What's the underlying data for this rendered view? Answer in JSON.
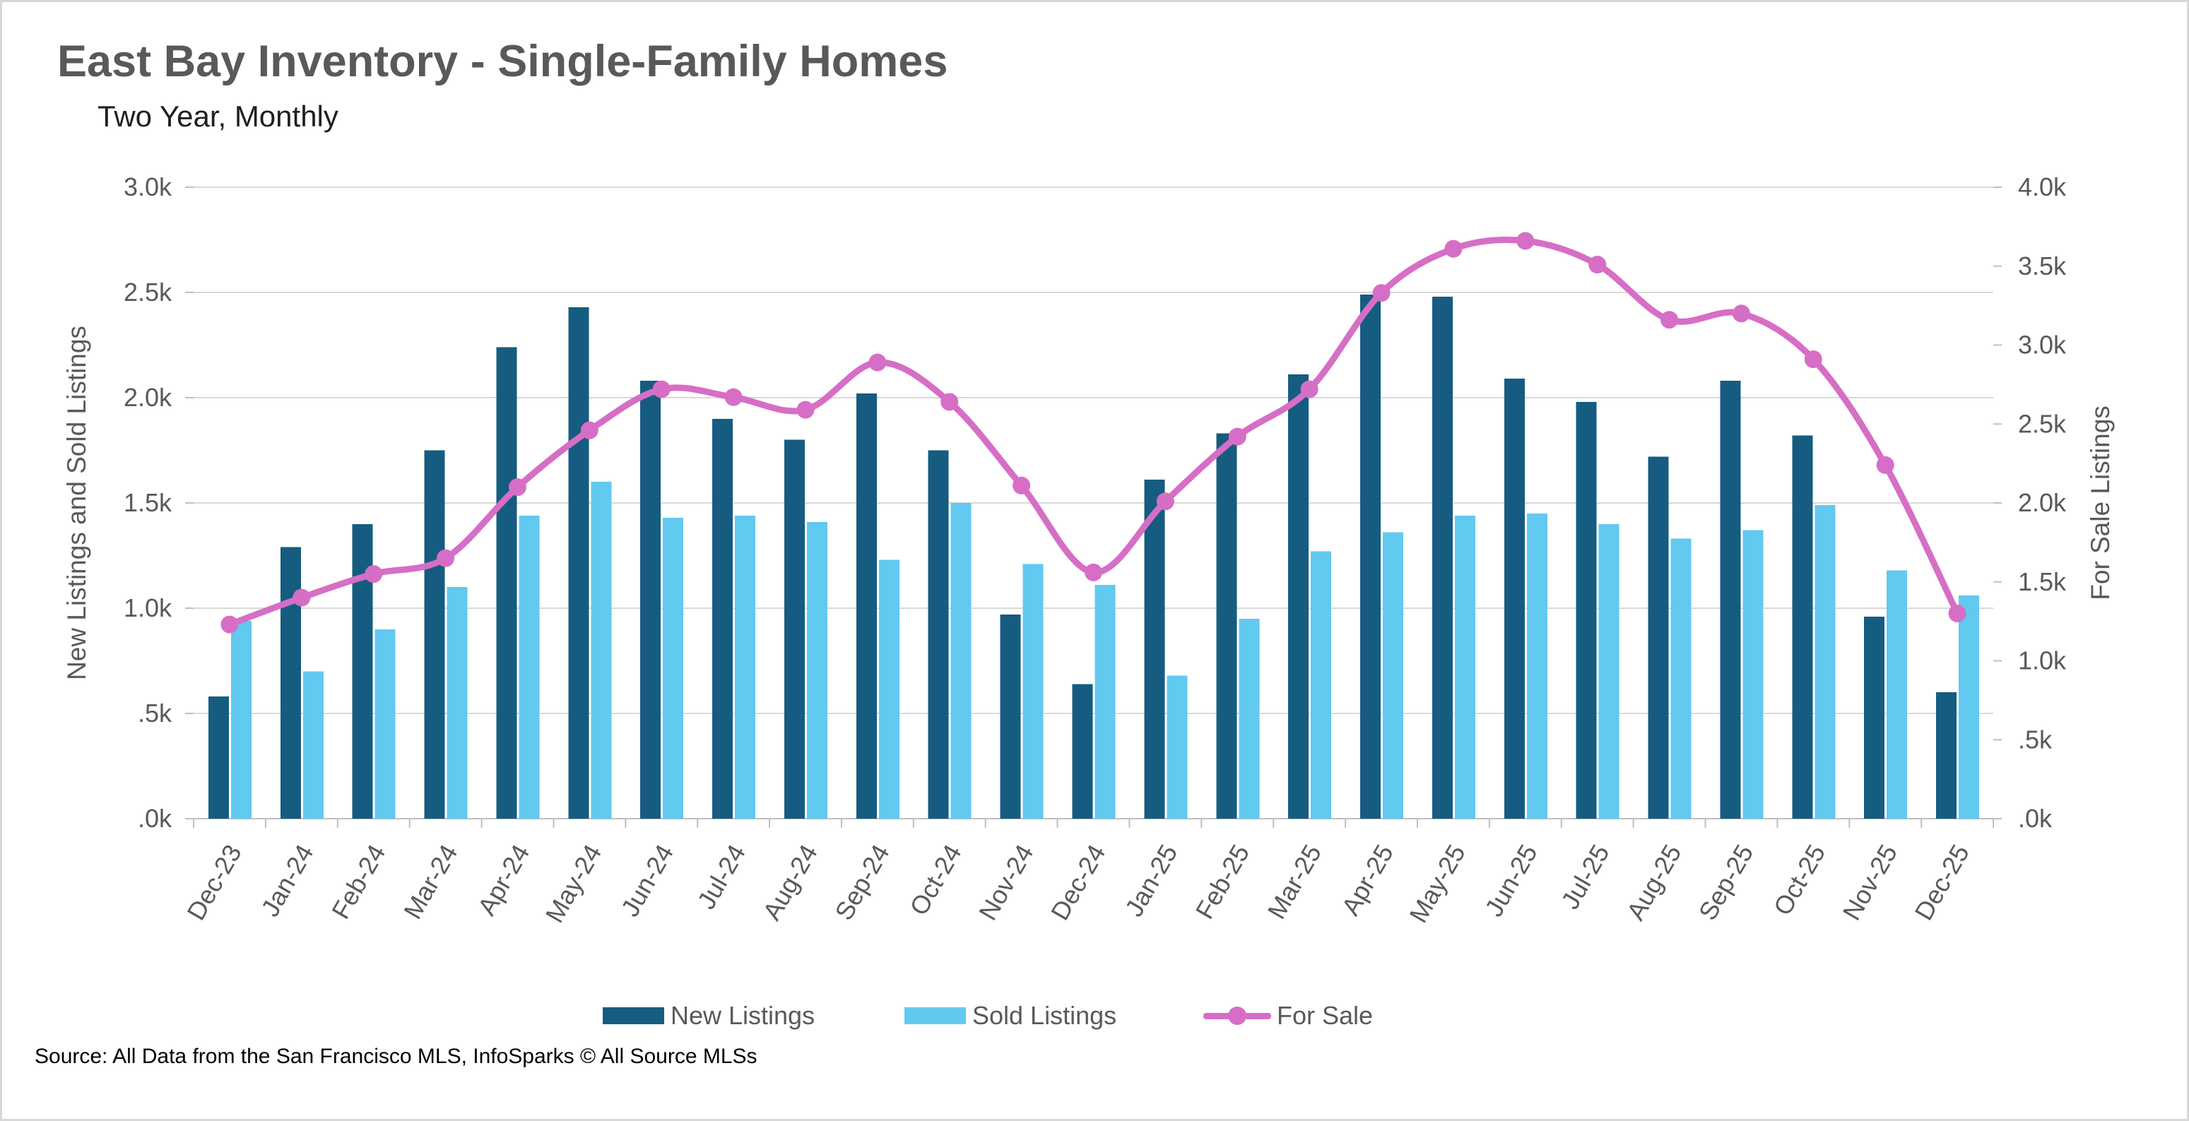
{
  "header": {
    "title": "East Bay Inventory - Single-Family Homes",
    "subtitle": "Two Year, Monthly"
  },
  "source": "Source: All Data from the San Francisco MLS, InfoSparks © All Source MLSs",
  "colors": {
    "new_listings": "#165C80",
    "sold_listings": "#62C9F0",
    "for_sale": "#D66EC6",
    "gridline": "#D9D9D9",
    "axis": "#BFBFBF",
    "text_gray": "#595959",
    "title_gray": "#595959"
  },
  "chart_data": {
    "type": "bar",
    "title": "East Bay Inventory - Single-Family Homes",
    "subtitle": "Two Year, Monthly",
    "categories": [
      "Dec-23",
      "Jan-24",
      "Feb-24",
      "Mar-24",
      "Apr-24",
      "May-24",
      "Jun-24",
      "Jul-24",
      "Aug-24",
      "Sep-24",
      "Oct-24",
      "Nov-24",
      "Dec-24",
      "Jan-25",
      "Feb-25",
      "Mar-25",
      "Apr-25",
      "May-25",
      "Jun-25",
      "Jul-25",
      "Aug-25",
      "Sep-25",
      "Oct-25",
      "Nov-25",
      "Dec-25"
    ],
    "series": [
      {
        "name": "New Listings",
        "type": "bar",
        "axis": "left",
        "color": "#165C80",
        "values": [
          580,
          1290,
          1400,
          1750,
          2240,
          2430,
          2080,
          1900,
          1800,
          2020,
          1750,
          970,
          640,
          1610,
          1830,
          2110,
          2490,
          2480,
          2090,
          1980,
          1720,
          2080,
          1820,
          960,
          600
        ]
      },
      {
        "name": "Sold Listings",
        "type": "bar",
        "axis": "left",
        "color": "#62C9F0",
        "values": [
          940,
          700,
          900,
          1100,
          1440,
          1600,
          1430,
          1440,
          1410,
          1230,
          1500,
          1210,
          1110,
          680,
          950,
          1270,
          1360,
          1440,
          1450,
          1400,
          1330,
          1370,
          1490,
          1180,
          1060
        ]
      },
      {
        "name": "For Sale",
        "type": "line",
        "axis": "right",
        "color": "#D66EC6",
        "values": [
          1230,
          1400,
          1550,
          1650,
          2100,
          2460,
          2720,
          2670,
          2590,
          2890,
          2640,
          2110,
          1560,
          2010,
          2420,
          2720,
          3330,
          3610,
          3660,
          3510,
          3160,
          3200,
          2910,
          2240,
          1300
        ]
      }
    ],
    "left_axis": {
      "label": "New Listings and Sold Listings",
      "ylim": [
        0,
        3000
      ],
      "tick_step": 500,
      "tick_labels": [
        ".0k",
        ".5k",
        "1.0k",
        "1.5k",
        "2.0k",
        "2.5k",
        "3.0k"
      ]
    },
    "right_axis": {
      "label": "For Sale Listings",
      "ylim": [
        0,
        4000
      ],
      "tick_step": 500,
      "tick_labels": [
        ".0k",
        ".5k",
        "1.0k",
        "1.5k",
        "2.0k",
        "2.5k",
        "3.0k",
        "3.5k",
        "4.0k"
      ]
    },
    "grid": true,
    "legend_position": "bottom"
  }
}
